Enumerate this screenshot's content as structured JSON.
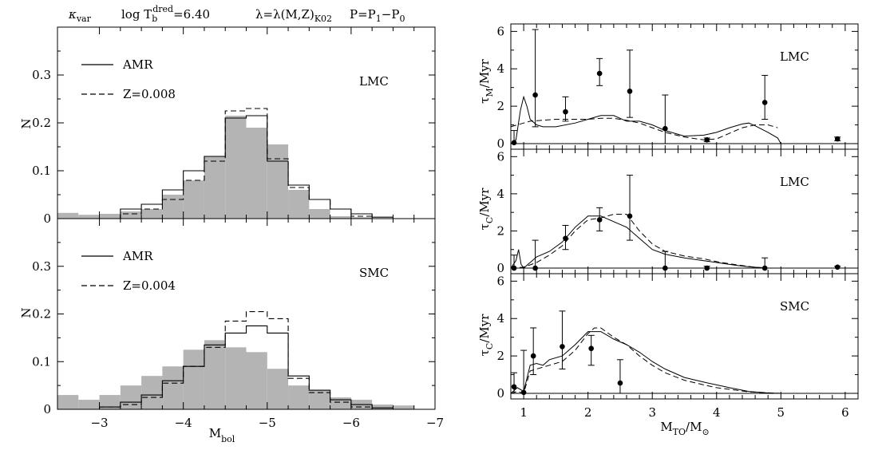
{
  "header": {
    "kappa_base": "κ",
    "kappa_sub": "var",
    "logT_pre": "log  T",
    "logT_sup": "dred",
    "logT_sub": "b",
    "logT_post": "=6.40",
    "lambda_pre": "λ=λ(M,Z)",
    "lambda_sub": "K02",
    "period": "P=P",
    "period_sub1": "1",
    "period_mid": "−P",
    "period_sub0": "0"
  },
  "chart_data": [
    {
      "id": "hist_lmc",
      "type": "histogram",
      "ylabel": "N",
      "region_label": "LMC",
      "xlim": [
        -2.5,
        -7
      ],
      "ylim": [
        0,
        0.4
      ],
      "yticks": [
        0,
        0.1,
        0.2,
        0.3
      ],
      "ytick_labels": [
        "0",
        "0.1",
        "0.2",
        "0.3"
      ],
      "legend": {
        "position": "top-left",
        "entries": [
          "AMR",
          "Z=0.008"
        ]
      },
      "bin_edges": [
        -2.5,
        -2.75,
        -3.0,
        -3.25,
        -3.5,
        -3.75,
        -4.0,
        -4.25,
        -4.5,
        -4.75,
        -5.0,
        -5.25,
        -5.5,
        -5.75,
        -6.0,
        -6.25,
        -6.5,
        -6.75,
        -7.0
      ],
      "observed": [
        0.012,
        0.008,
        0.01,
        0.015,
        0.02,
        0.05,
        0.08,
        0.13,
        0.215,
        0.19,
        0.155,
        0.06,
        0.02,
        0.005,
        0.003,
        0,
        0,
        0
      ],
      "series": [
        {
          "name": "AMR",
          "values": [
            0,
            0,
            0,
            0.02,
            0.03,
            0.06,
            0.1,
            0.13,
            0.21,
            0.215,
            0.12,
            0.07,
            0.04,
            0.02,
            0.01,
            0.003,
            0,
            0
          ]
        },
        {
          "name": "Z=0.008",
          "values": [
            0,
            0,
            0,
            0.01,
            0.02,
            0.04,
            0.08,
            0.12,
            0.225,
            0.23,
            0.125,
            0.065,
            0.04,
            0.02,
            0.005,
            0,
            0,
            0
          ]
        }
      ]
    },
    {
      "id": "hist_smc",
      "type": "histogram",
      "ylabel": "N",
      "region_label": "SMC",
      "xlabel": "M",
      "xlabel_sub": "bol",
      "xlim": [
        -2.5,
        -7
      ],
      "ylim": [
        0,
        0.4
      ],
      "xticks": [
        -3,
        -4,
        -5,
        -6,
        -7
      ],
      "xtick_labels": [
        "−3",
        "−4",
        "−5",
        "−6",
        "−7"
      ],
      "yticks": [
        0,
        0.1,
        0.2,
        0.3
      ],
      "ytick_labels": [
        "0",
        "0.1",
        "0.2",
        "0.3"
      ],
      "legend": {
        "position": "top-left",
        "entries": [
          "AMR",
          "Z=0.004"
        ]
      },
      "bin_edges": [
        -2.5,
        -2.75,
        -3.0,
        -3.25,
        -3.5,
        -3.75,
        -4.0,
        -4.25,
        -4.5,
        -4.75,
        -5.0,
        -5.25,
        -5.5,
        -5.75,
        -6.0,
        -6.25,
        -6.5,
        -6.75,
        -7.0
      ],
      "observed": [
        0.03,
        0.02,
        0.03,
        0.05,
        0.07,
        0.09,
        0.125,
        0.145,
        0.13,
        0.12,
        0.085,
        0.05,
        0.04,
        0.025,
        0.02,
        0.01,
        0.008,
        0
      ],
      "series": [
        {
          "name": "AMR",
          "values": [
            0,
            0,
            0.005,
            0.015,
            0.03,
            0.06,
            0.09,
            0.135,
            0.16,
            0.175,
            0.16,
            0.07,
            0.04,
            0.02,
            0.01,
            0.003,
            0,
            0
          ]
        },
        {
          "name": "Z=0.004",
          "values": [
            0,
            0,
            0.005,
            0.01,
            0.025,
            0.055,
            0.09,
            0.13,
            0.185,
            0.205,
            0.19,
            0.065,
            0.035,
            0.015,
            0.005,
            0,
            0,
            0
          ]
        }
      ]
    },
    {
      "id": "tau_m_lmc",
      "type": "line",
      "ylabel_base": "τ",
      "ylabel_sub": "M",
      "ylabel_post": "/Myr",
      "region_label": "LMC",
      "xlim": [
        0.8,
        6.2
      ],
      "ylim": [
        -0.3,
        6.4
      ],
      "yticks": [
        0,
        2,
        4,
        6
      ],
      "ytick_labels": [
        "0",
        "2",
        "4",
        "6"
      ],
      "points": [
        {
          "x": 0.85,
          "y": 0.05,
          "lo": 0,
          "hi": 0.7
        },
        {
          "x": 1.18,
          "y": 2.6,
          "lo": 0.9,
          "hi": 6.1
        },
        {
          "x": 1.65,
          "y": 1.7,
          "lo": 1.2,
          "hi": 2.5
        },
        {
          "x": 2.18,
          "y": 3.75,
          "lo": 3.1,
          "hi": 4.55
        },
        {
          "x": 2.65,
          "y": 2.8,
          "lo": 1.4,
          "hi": 5.0
        },
        {
          "x": 3.2,
          "y": 0.8,
          "lo": 0,
          "hi": 2.6
        },
        {
          "x": 3.85,
          "y": 0.2,
          "lo": 0.1,
          "hi": 0.3
        },
        {
          "x": 4.75,
          "y": 2.2,
          "lo": 1.3,
          "hi": 3.65
        },
        {
          "x": 5.88,
          "y": 0.25,
          "lo": 0.15,
          "hi": 0.35
        }
      ],
      "series": [
        {
          "style": "solid",
          "x": [
            0.8,
            0.88,
            0.95,
            1.0,
            1.05,
            1.1,
            1.2,
            1.3,
            1.5,
            1.8,
            2.0,
            2.2,
            2.4,
            2.6,
            2.8,
            3.0,
            3.2,
            3.5,
            3.8,
            4.0,
            4.2,
            4.4,
            4.5,
            4.6,
            4.8,
            4.95,
            5.0
          ],
          "y": [
            0,
            0.2,
            1.8,
            2.5,
            2.0,
            1.3,
            1.0,
            0.9,
            0.9,
            1.1,
            1.3,
            1.5,
            1.5,
            1.2,
            1.2,
            1.0,
            0.7,
            0.4,
            0.45,
            0.6,
            0.85,
            1.05,
            1.1,
            0.95,
            0.6,
            0.3,
            0
          ]
        },
        {
          "style": "dashed",
          "x": [
            0.8,
            0.9,
            1.0,
            1.1,
            1.3,
            1.5,
            1.8,
            2.0,
            2.2,
            2.4,
            2.6,
            2.8,
            3.0,
            3.2,
            3.5,
            3.8,
            4.0,
            4.2,
            4.4,
            4.6,
            4.8,
            4.95
          ],
          "y": [
            0.9,
            1.0,
            1.1,
            1.2,
            1.25,
            1.3,
            1.3,
            1.3,
            1.35,
            1.35,
            1.25,
            1.1,
            0.85,
            0.6,
            0.35,
            0.2,
            0.25,
            0.55,
            0.85,
            1.0,
            1.0,
            0.85
          ]
        }
      ]
    },
    {
      "id": "tau_c_lmc",
      "type": "line",
      "ylabel_base": "τ",
      "ylabel_sub": "C",
      "ylabel_post": "/Myr",
      "region_label": "LMC",
      "xlim": [
        0.8,
        6.2
      ],
      "ylim": [
        -0.3,
        6.4
      ],
      "yticks": [
        0,
        2,
        4,
        6
      ],
      "ytick_labels": [
        "0",
        "2",
        "4",
        "6"
      ],
      "points": [
        {
          "x": 0.85,
          "y": 0.0,
          "lo": 0,
          "hi": 0.7
        },
        {
          "x": 1.18,
          "y": 0.0,
          "lo": 0,
          "hi": 1.5
        },
        {
          "x": 1.65,
          "y": 1.6,
          "lo": 1.0,
          "hi": 2.3
        },
        {
          "x": 2.18,
          "y": 2.6,
          "lo": 2.0,
          "hi": 3.25
        },
        {
          "x": 2.65,
          "y": 2.8,
          "lo": 1.5,
          "hi": 5.0
        },
        {
          "x": 3.2,
          "y": 0.0,
          "lo": 0,
          "hi": 0.9
        },
        {
          "x": 3.85,
          "y": 0.0,
          "lo": 0,
          "hi": 0.1
        },
        {
          "x": 4.75,
          "y": 0.0,
          "lo": 0,
          "hi": 0.55
        },
        {
          "x": 5.88,
          "y": 0.05,
          "lo": 0,
          "hi": 0.1
        }
      ],
      "series": [
        {
          "style": "solid",
          "x": [
            0.8,
            0.88,
            0.92,
            0.96,
            1.0,
            1.1,
            1.2,
            1.4,
            1.6,
            1.8,
            2.0,
            2.2,
            2.4,
            2.6,
            2.8,
            3.0,
            3.2,
            3.5,
            3.8,
            4.0,
            4.3,
            4.5,
            4.7,
            4.8
          ],
          "y": [
            0,
            0.4,
            1.0,
            0.2,
            0.0,
            0.3,
            0.6,
            0.9,
            1.4,
            2.2,
            2.8,
            2.8,
            2.5,
            2.2,
            1.6,
            1.0,
            0.75,
            0.55,
            0.4,
            0.3,
            0.15,
            0.07,
            0.02,
            0
          ]
        },
        {
          "style": "dashed",
          "x": [
            0.8,
            1.0,
            1.2,
            1.4,
            1.6,
            1.8,
            2.0,
            2.2,
            2.4,
            2.6,
            2.8,
            3.0,
            3.2,
            3.5,
            3.8,
            4.0,
            4.3,
            4.6,
            4.8
          ],
          "y": [
            0,
            0.05,
            0.3,
            0.7,
            1.2,
            2.0,
            2.6,
            2.7,
            2.9,
            2.9,
            2.0,
            1.3,
            0.9,
            0.65,
            0.5,
            0.35,
            0.18,
            0.05,
            0
          ]
        }
      ]
    },
    {
      "id": "tau_c_smc",
      "type": "line",
      "ylabel_base": "τ",
      "ylabel_sub": "C",
      "ylabel_post": "/Myr",
      "region_label": "SMC",
      "xlabel": "M",
      "xlabel_sub": "TO",
      "xlabel_post": "/M",
      "xlabel_sub2": "⊙",
      "xlim": [
        0.8,
        6.2
      ],
      "ylim": [
        -0.3,
        6.4
      ],
      "xticks": [
        1,
        2,
        3,
        4,
        5,
        6
      ],
      "xtick_labels": [
        "1",
        "2",
        "3",
        "4",
        "5",
        "6"
      ],
      "yticks": [
        0,
        2,
        4,
        6
      ],
      "ytick_labels": [
        "0",
        "2",
        "4",
        "6"
      ],
      "points": [
        {
          "x": 0.85,
          "y": 0.35,
          "lo": 0,
          "hi": 1.1
        },
        {
          "x": 1.0,
          "y": 0.05,
          "lo": 0,
          "hi": 2.3
        },
        {
          "x": 1.15,
          "y": 2.0,
          "lo": 1.0,
          "hi": 3.5
        },
        {
          "x": 1.6,
          "y": 2.5,
          "lo": 1.3,
          "hi": 4.4
        },
        {
          "x": 2.05,
          "y": 2.4,
          "lo": 1.5,
          "hi": 3.1
        },
        {
          "x": 2.5,
          "y": 0.55,
          "lo": 0,
          "hi": 1.8
        }
      ],
      "series": [
        {
          "style": "solid",
          "x": [
            0.8,
            0.9,
            1.0,
            1.1,
            1.2,
            1.3,
            1.4,
            1.6,
            1.8,
            2.0,
            2.2,
            2.4,
            2.6,
            2.8,
            3.0,
            3.2,
            3.5,
            3.8,
            4.0,
            4.2,
            4.5,
            4.8,
            5.0
          ],
          "y": [
            0,
            0.3,
            0.1,
            1.5,
            1.6,
            1.5,
            1.8,
            2.0,
            2.6,
            3.3,
            3.3,
            2.9,
            2.6,
            2.2,
            1.7,
            1.3,
            0.85,
            0.6,
            0.45,
            0.3,
            0.1,
            0.02,
            0
          ]
        },
        {
          "style": "dashed",
          "x": [
            0.8,
            0.9,
            1.0,
            1.1,
            1.2,
            1.4,
            1.6,
            1.8,
            2.0,
            2.1,
            2.2,
            2.4,
            2.6,
            2.8,
            3.0,
            3.2,
            3.5,
            3.8,
            4.0,
            4.5,
            5.0
          ],
          "y": [
            0,
            0.1,
            0.0,
            1.2,
            1.3,
            1.5,
            1.7,
            2.3,
            3.2,
            3.5,
            3.5,
            3.0,
            2.6,
            2.0,
            1.5,
            1.1,
            0.7,
            0.45,
            0.3,
            0.08,
            0
          ]
        }
      ]
    }
  ]
}
